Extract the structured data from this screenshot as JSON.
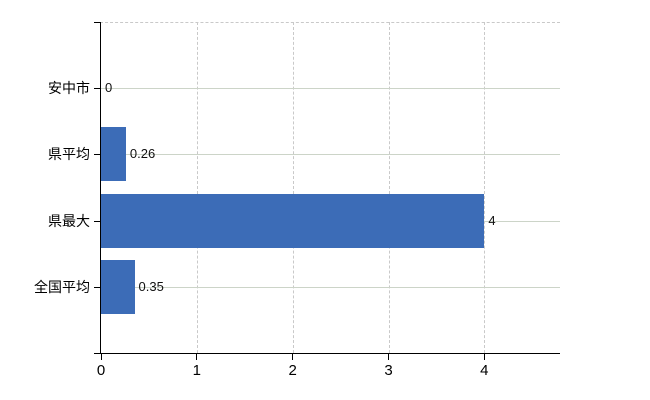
{
  "chart_data": {
    "type": "bar",
    "orientation": "horizontal",
    "title": "",
    "categories": [
      "安中市",
      "県平均",
      "県最大",
      "全国平均"
    ],
    "values": [
      0,
      0.26,
      4,
      0.35
    ],
    "value_labels": [
      "0",
      "0.26",
      "4",
      "0.35"
    ],
    "x_ticks": [
      0,
      1,
      2,
      3,
      4
    ],
    "x_tick_labels": [
      "0",
      "1",
      "2",
      "3",
      "4"
    ],
    "xlim": [
      0,
      4.8
    ],
    "xlabel": "",
    "ylabel": "",
    "grid": true,
    "legend": false,
    "gridline_style": {
      "horizontal": "solid",
      "vertical": "dashed",
      "plot_top_border": "dashed"
    },
    "colors": {
      "bar": "#3c6cb7",
      "axis": "#000000",
      "h_gridline": "#ccd4c8",
      "v_gridline": "#c9c9c9",
      "text": "#000000",
      "value_text": "#111111",
      "background": "#ffffff"
    }
  }
}
